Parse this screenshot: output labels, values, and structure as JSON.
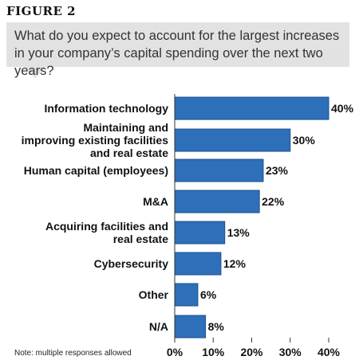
{
  "figure": {
    "label": "FIGURE 2",
    "question": "What do you expect to account for the largest increases in your company’s capital spending over the next two years?",
    "note": "Note: multiple responses allowed"
  },
  "colors": {
    "bar": "#2e6fba",
    "bar_edge": "#1d4f8c",
    "question_bg": "#e2e2e2"
  },
  "chart_data": {
    "type": "bar",
    "orientation": "horizontal",
    "title": "",
    "xlabel": "",
    "ylabel": "",
    "xlim": [
      0,
      40
    ],
    "x_ticks": [
      "0%",
      "10%",
      "20%",
      "30%",
      "40%"
    ],
    "x_tick_values": [
      0,
      10,
      20,
      30,
      40
    ],
    "grid": false,
    "categories": [
      [
        "Information technology"
      ],
      [
        "Maintaining and",
        "improving existing facilities",
        "and real estate"
      ],
      [
        "Human capital (employees)"
      ],
      [
        "M&A"
      ],
      [
        "Acquiring facilities and",
        "real estate"
      ],
      [
        "Cybersecurity"
      ],
      [
        "Other"
      ],
      [
        "N/A"
      ]
    ],
    "values": [
      40,
      30,
      23,
      22,
      13,
      12,
      6,
      8
    ],
    "value_labels": [
      "40%",
      "30%",
      "23%",
      "22%",
      "13%",
      "12%",
      "6%",
      "8%"
    ]
  }
}
